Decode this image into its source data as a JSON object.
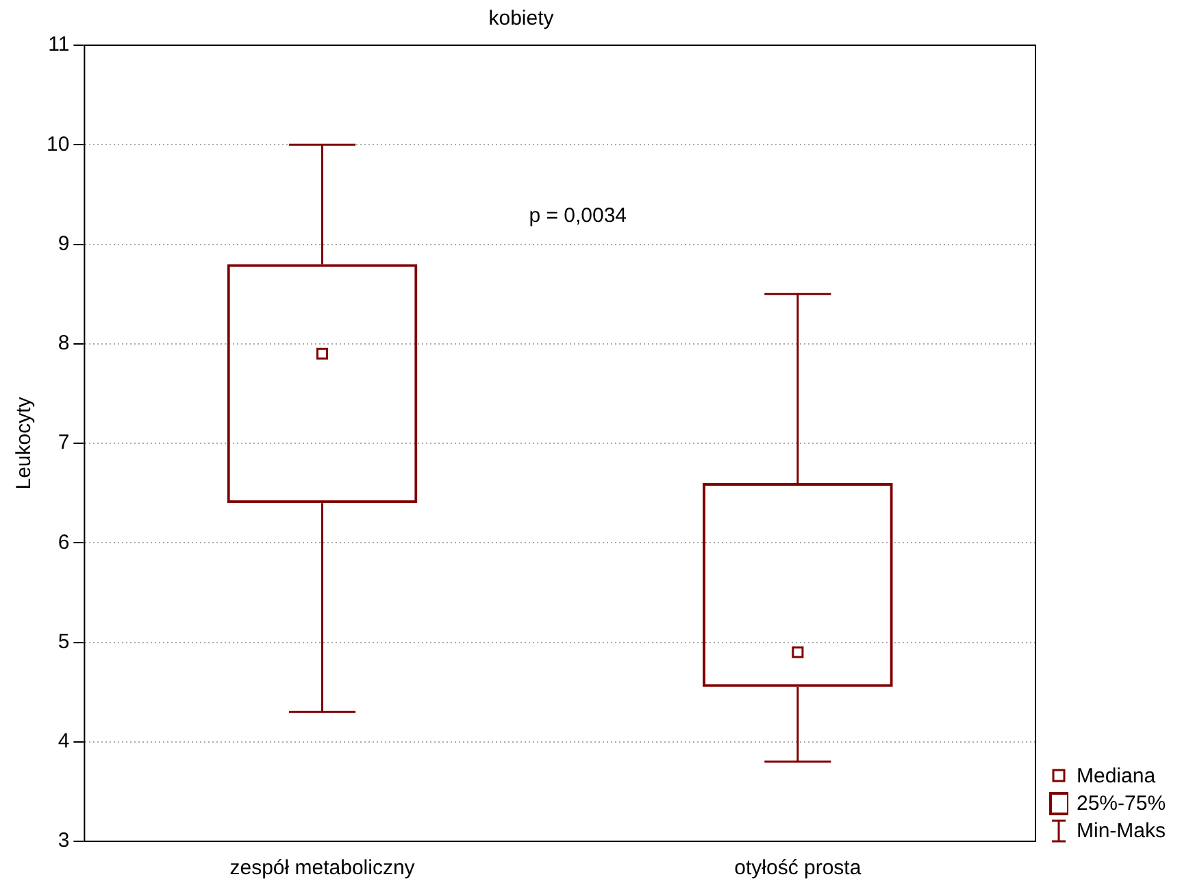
{
  "chart_data": {
    "type": "box",
    "title": "kobiety",
    "ylabel": "Leukocyty",
    "categories": [
      "zespół metaboliczny",
      "otyłość prosta"
    ],
    "boxes": [
      {
        "low": 4.3,
        "q1": 6.4,
        "median": 7.9,
        "q3": 8.8,
        "high": 10.0
      },
      {
        "low": 3.8,
        "q1": 4.55,
        "median": 4.9,
        "q3": 6.6,
        "high": 8.5
      }
    ],
    "color": "#800000",
    "ylim": [
      3,
      11
    ],
    "yticks": [
      3,
      4,
      5,
      6,
      7,
      8,
      9,
      10,
      11
    ],
    "grid": "y",
    "marker": "square",
    "annotations": [
      "p = 0,0034",
      "Mediana",
      "25%-75%",
      "Min-Maks"
    ]
  }
}
